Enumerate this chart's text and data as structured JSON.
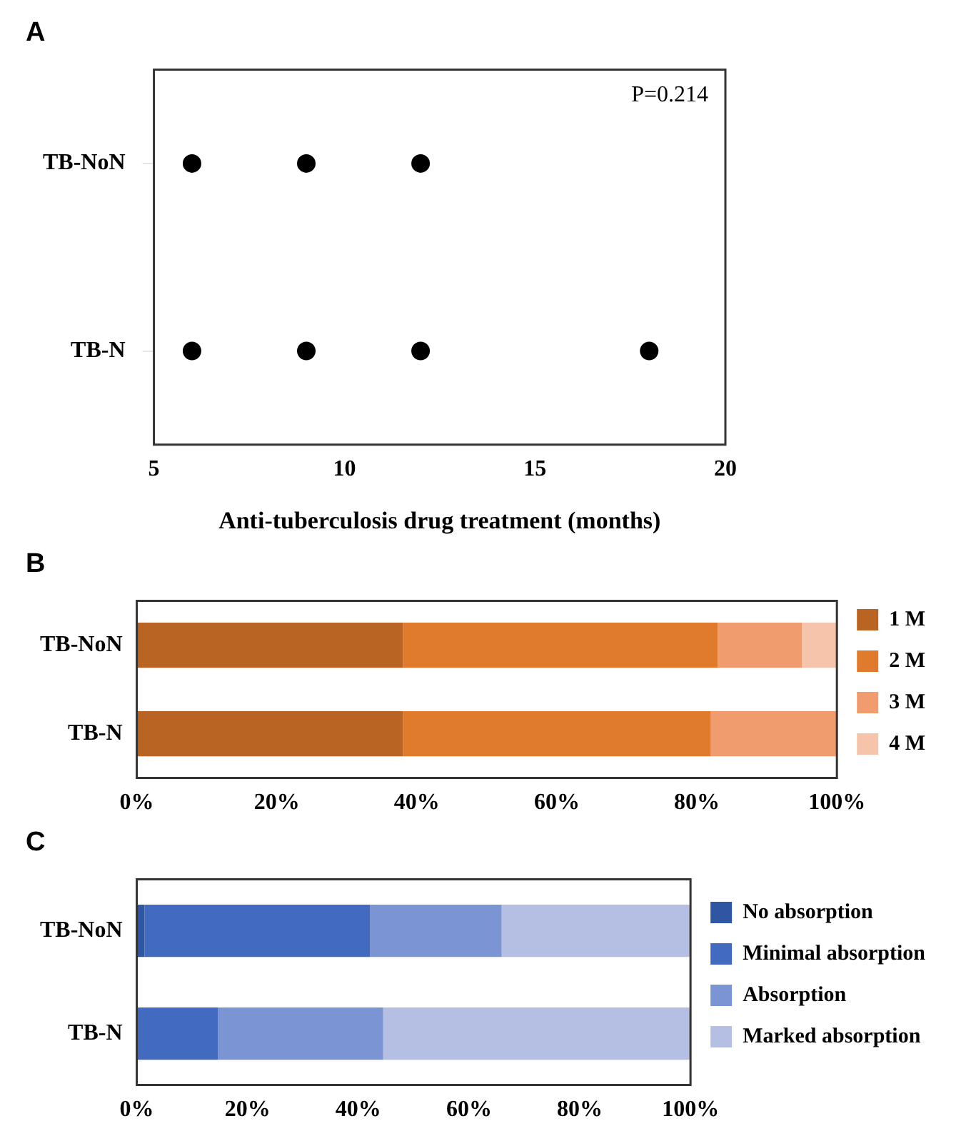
{
  "chart_data": [
    {
      "type": "scatter",
      "title": "A",
      "orientation": "horizontal",
      "categories": [
        "TB-NoN",
        "TB-N"
      ],
      "xlabel": "Anti-tuberculosis drug treatment (months)",
      "xlim": [
        5,
        20
      ],
      "xticks": [
        5,
        10,
        15,
        20
      ],
      "marker": "circle",
      "annotations": [
        "P=0.214"
      ],
      "series": [
        {
          "color": "#000000",
          "x": [
            "TB-NoN",
            "TB-NoN",
            "TB-NoN"
          ],
          "values": [
            6,
            9,
            12
          ]
        },
        {
          "color": "#000000",
          "x": [
            "TB-N",
            "TB-N",
            "TB-N",
            "TB-N"
          ],
          "values": [
            6,
            9,
            12,
            18
          ]
        }
      ]
    },
    {
      "type": "bar",
      "title": "B",
      "orientation": "horizontal",
      "stacked": true,
      "categories": [
        "TB-NoN",
        "TB-N"
      ],
      "xlim": [
        0,
        100
      ],
      "xticks": [
        {
          "value": 0,
          "label": "0%"
        },
        {
          "value": 20,
          "label": "20%"
        },
        {
          "value": 40,
          "label": "40%"
        },
        {
          "value": 60,
          "label": "60%"
        },
        {
          "value": 80,
          "label": "80%"
        },
        {
          "value": 100,
          "label": "100%"
        }
      ],
      "legend": "right",
      "series": [
        {
          "name": "1 M",
          "color": "#b96422",
          "values": [
            38,
            38
          ]
        },
        {
          "name": "2 M",
          "color": "#e07b2e",
          "values": [
            45,
            44
          ]
        },
        {
          "name": "3 M",
          "color": "#f09c6e",
          "values": [
            12,
            18
          ]
        },
        {
          "name": "4 M",
          "color": "#f5c4ab",
          "values": [
            5,
            0
          ]
        }
      ]
    },
    {
      "type": "bar",
      "title": "C",
      "orientation": "horizontal",
      "stacked": true,
      "categories": [
        "TB-NoN",
        "TB-N"
      ],
      "xlim": [
        0,
        100
      ],
      "xticks": [
        {
          "value": 0,
          "label": "0%"
        },
        {
          "value": 20,
          "label": "20%"
        },
        {
          "value": 40,
          "label": "40%"
        },
        {
          "value": 60,
          "label": "60%"
        },
        {
          "value": 80,
          "label": "80%"
        },
        {
          "value": 100,
          "label": "100%"
        }
      ],
      "legend": "right",
      "series": [
        {
          "name": "No absorption",
          "color": "#2f56a3",
          "values": [
            1.4,
            0
          ]
        },
        {
          "name": "Minimal absorption",
          "color": "#426bbf",
          "values": [
            40.7,
            14.7
          ]
        },
        {
          "name": "Absorption",
          "color": "#7b95d4",
          "values": [
            23.8,
            29.8
          ]
        },
        {
          "name": "Marked absorption",
          "color": "#b4bfe3",
          "values": [
            34.1,
            55.5
          ]
        }
      ]
    }
  ]
}
